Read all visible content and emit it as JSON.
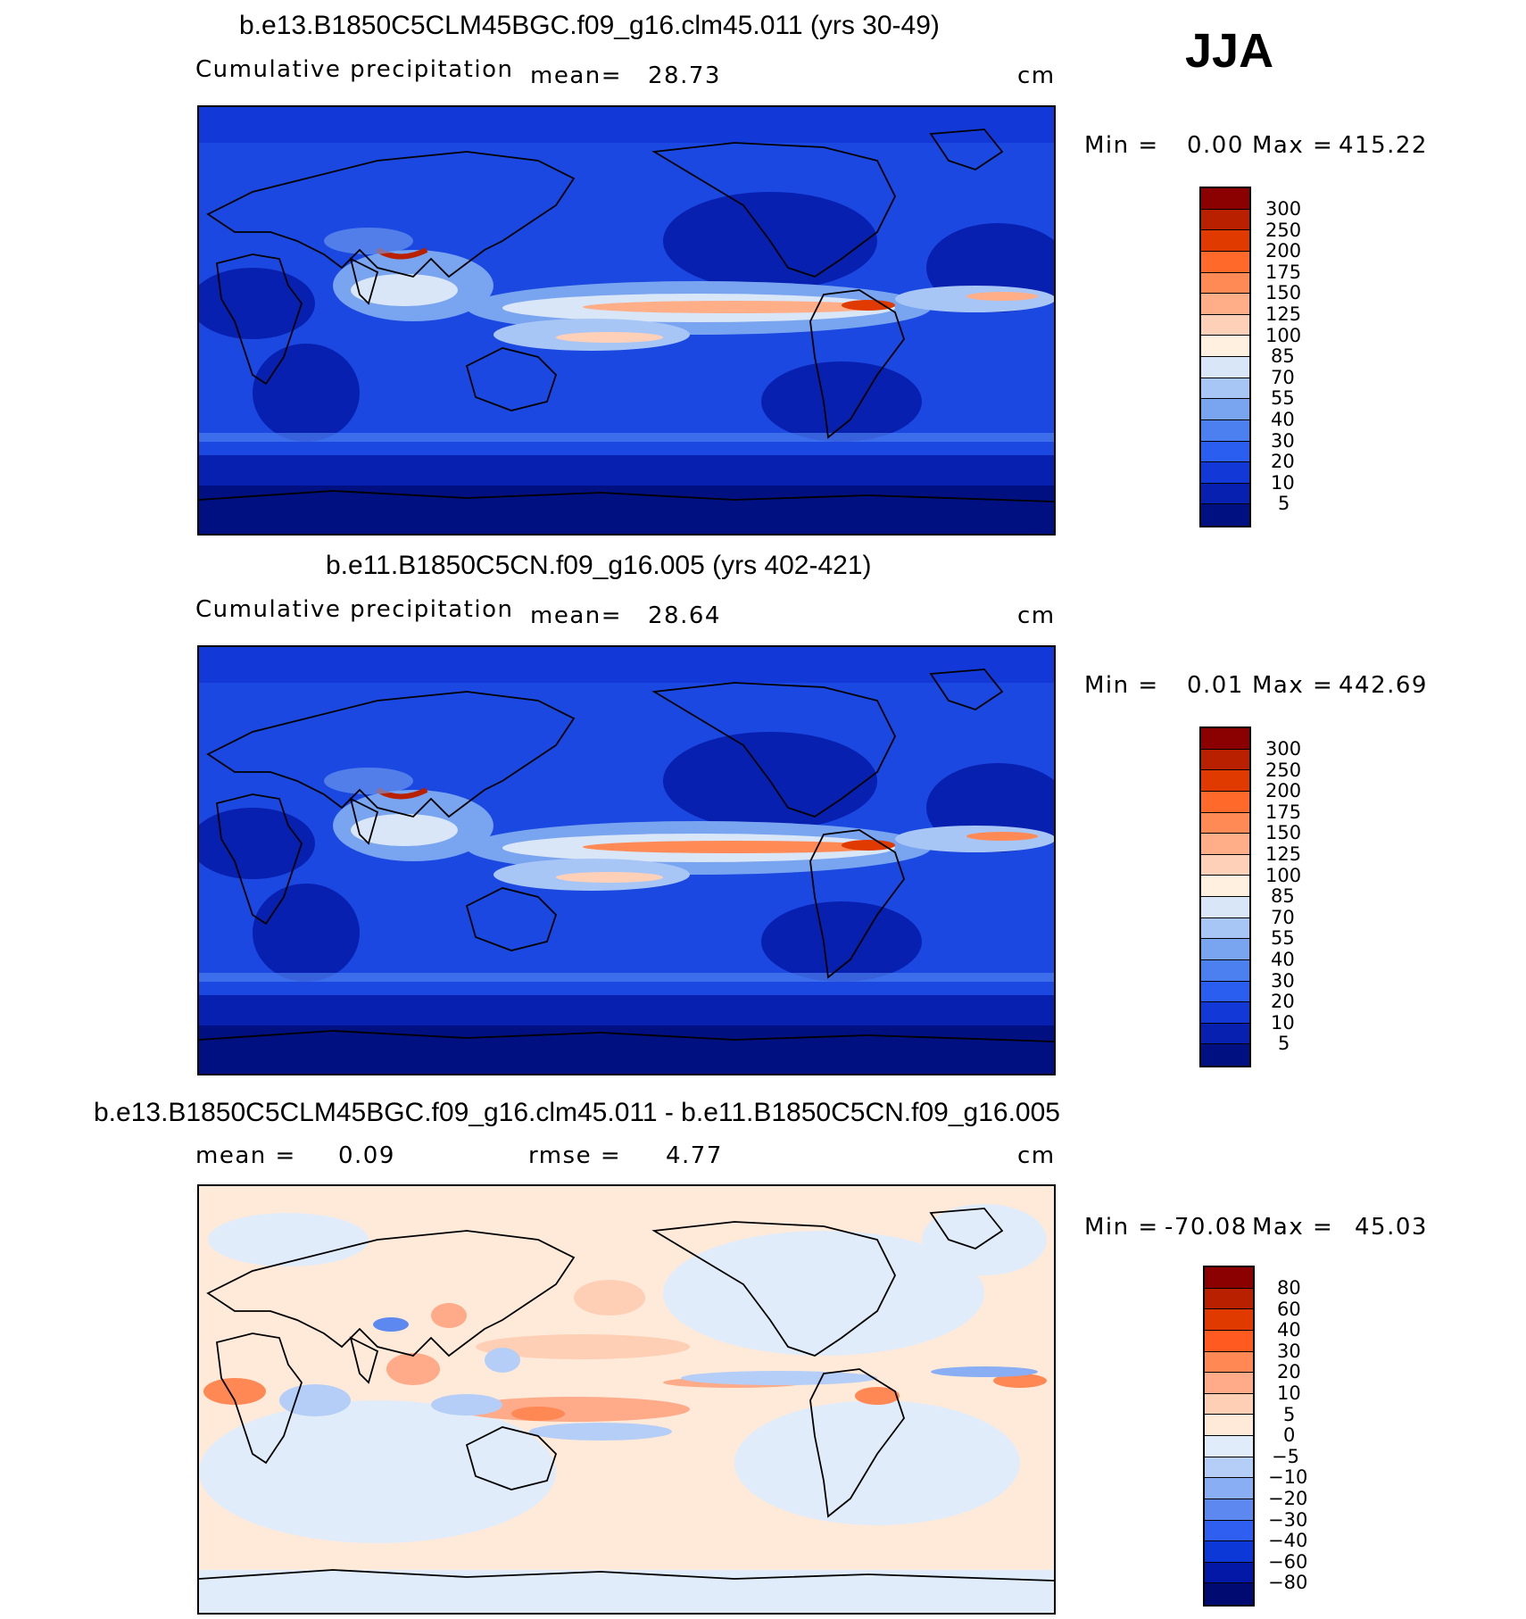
{
  "season": "JJA",
  "panels": [
    {
      "title": "b.e13.B1850C5CLM45BGC.f09_g16.clm45.011 (yrs 30-49)",
      "left_label": "Cumulative precipitation",
      "stat_label": "mean=",
      "stat_value": "28.73",
      "units": "cm",
      "min_label": "Min =",
      "min_value": "0.00",
      "max_label": "Max =",
      "max_value": "415.22",
      "legend": {
        "labels": [
          "300",
          "250",
          "200",
          "175",
          "150",
          "125",
          "100",
          "85",
          "70",
          "55",
          "40",
          "30",
          "20",
          "10",
          "5"
        ],
        "colors": [
          "#8b0000",
          "#b82000",
          "#e03a00",
          "#ff6a2a",
          "#ff8a55",
          "#ffae88",
          "#ffd0b8",
          "#fff0e0",
          "#d8e6f8",
          "#a8c6f5",
          "#78a4f0",
          "#4c7ff0",
          "#2a5ef0",
          "#1238d8",
          "#0820b0",
          "#001080"
        ]
      }
    },
    {
      "title": "b.e11.B1850C5CN.f09_g16.005 (yrs 402-421)",
      "left_label": "Cumulative precipitation",
      "stat_label": "mean=",
      "stat_value": "28.64",
      "units": "cm",
      "min_label": "Min =",
      "min_value": "0.01",
      "max_label": "Max =",
      "max_value": "442.69",
      "legend": {
        "labels": [
          "300",
          "250",
          "200",
          "175",
          "150",
          "125",
          "100",
          "85",
          "70",
          "55",
          "40",
          "30",
          "20",
          "10",
          "5"
        ],
        "colors": [
          "#8b0000",
          "#b82000",
          "#e03a00",
          "#ff6a2a",
          "#ff8a55",
          "#ffae88",
          "#ffd0b8",
          "#fff0e0",
          "#d8e6f8",
          "#a8c6f5",
          "#78a4f0",
          "#4c7ff0",
          "#2a5ef0",
          "#1238d8",
          "#0820b0",
          "#001080"
        ]
      }
    },
    {
      "title": "b.e13.B1850C5CLM45BGC.f09_g16.clm45.011 - b.e11.B1850C5CN.f09_g16.005",
      "left_label": "mean =",
      "left_value": "0.09",
      "stat_label": "rmse =",
      "stat_value": "4.77",
      "units": "cm",
      "min_label": "Min =",
      "min_value": "-70.08",
      "max_label": "Max =",
      "max_value": "45.03",
      "legend": {
        "labels": [
          "80",
          "60",
          "40",
          "30",
          "20",
          "10",
          "5",
          "0",
          "−5",
          "−10",
          "−20",
          "−30",
          "−40",
          "−60",
          "−80"
        ],
        "colors": [
          "#8b0000",
          "#b82000",
          "#e03a00",
          "#ff5a20",
          "#ff8855",
          "#ffaa88",
          "#ffcfb5",
          "#ffeada",
          "#e0ecfa",
          "#b4cef7",
          "#8aaef3",
          "#5c88f0",
          "#2e5ff0",
          "#0c38d8",
          "#0418a8",
          "#000a70"
        ]
      }
    }
  ]
}
